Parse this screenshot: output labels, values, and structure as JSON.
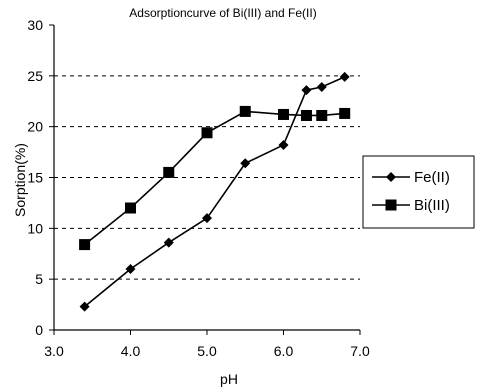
{
  "chart_data": {
    "type": "line",
    "title": "Adsorptioncurve of Bi(III) and Fe(II)",
    "xlabel": "pH",
    "ylabel": "Sorption(%)",
    "xlim": [
      3.0,
      7.0
    ],
    "ylim": [
      0,
      30
    ],
    "x_ticks": [
      3.0,
      4.0,
      5.0,
      6.0,
      7.0
    ],
    "x_tick_labels": [
      "3.0",
      "4.0",
      "5.0",
      "6.0",
      "7.0"
    ],
    "y_ticks": [
      0,
      5,
      10,
      15,
      20,
      25,
      30
    ],
    "y_tick_labels": [
      "0",
      "5",
      "10",
      "15",
      "20",
      "25",
      "30"
    ],
    "grid": "horizontal dashed",
    "legend_position": "right",
    "series": [
      {
        "name": "Fe(II)",
        "marker": "diamond",
        "x": [
          3.4,
          4.0,
          4.5,
          5.0,
          5.5,
          6.0,
          6.3,
          6.5,
          6.8
        ],
        "y": [
          2.3,
          6.0,
          8.6,
          11.0,
          16.4,
          18.2,
          23.6,
          23.9,
          24.9
        ]
      },
      {
        "name": "Bi(III)",
        "marker": "square",
        "x": [
          3.4,
          4.0,
          4.5,
          5.0,
          5.5,
          6.0,
          6.3,
          6.5,
          6.8
        ],
        "y": [
          8.4,
          12.0,
          15.5,
          19.4,
          21.5,
          21.2,
          21.1,
          21.1,
          21.3
        ]
      }
    ]
  }
}
